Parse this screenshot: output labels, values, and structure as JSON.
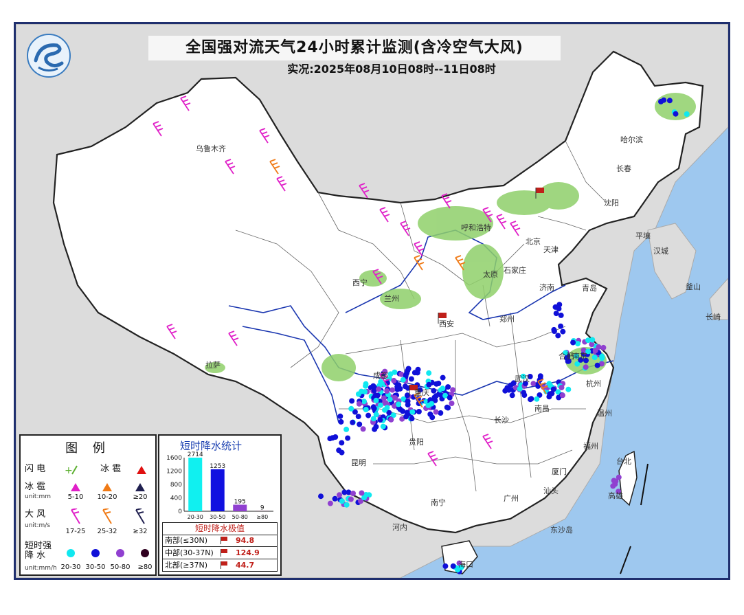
{
  "header": {
    "title": "全国强对流天气24小时累计监测(含冷空气大风)",
    "subtitle": "实况:2025年08月10日08时--11日08时"
  },
  "map_labels": {
    "urumqi": "乌鲁木齐",
    "lhasa": "拉萨",
    "xining": "西宁",
    "lanzhou": "兰州",
    "xian": "西安",
    "chengdu": "成都",
    "chongqing": "重庆",
    "guiyang": "贵阳",
    "kunming": "昆明",
    "nanning": "南宁",
    "guangzhou": "广州",
    "haikou": "海口",
    "changsha": "长沙",
    "nanchang": "南昌",
    "fuzhou": "福州",
    "hefei": "合肥",
    "nanjing": "南京",
    "wuhan": "武汉",
    "zhengzhou": "郑州",
    "jinan": "济南",
    "shijiazhuang": "石家庄",
    "taiyuan": "太原",
    "beijing": "北京",
    "tianjin": "天津",
    "hohhot": "呼和浩特",
    "shenyang": "沈阳",
    "changchun": "长春",
    "harbin": "哈尔滨",
    "qingdao": "青岛",
    "hangzhou": "杭州",
    "wenzhou": "温州",
    "xiamen": "厦门",
    "taipei": "台北",
    "kaohsiung": "高雄",
    "shantou": "汕头",
    "pyongyang": "平壤",
    "seoul": "汉城",
    "busan": "釜山",
    "nagasaki": "长崎",
    "hanoi": "河内",
    "dongsha": "东沙岛"
  },
  "legend": {
    "title": "图 例",
    "lightning_label": "闪 电",
    "hail_label": "冰 雹",
    "hail_size_label": "冰 雹",
    "hail_unit": "unit:mm",
    "hail_levels": [
      "5-10",
      "10-20",
      "≥20"
    ],
    "hail_colors": [
      "#e020c8",
      "#f07a16",
      "#202050"
    ],
    "wind_label": "大 风",
    "wind_unit": "unit:m/s",
    "wind_levels": [
      "17-25",
      "25-32",
      "≥32"
    ],
    "wind_colors": [
      "#e020c8",
      "#f07a16",
      "#202050"
    ],
    "rain_label_1": "短时强",
    "rain_label_2": "降  水",
    "rain_unit": "unit:mm/h",
    "rain_levels": [
      "20-30",
      "30-50",
      "50-80",
      "≥80"
    ],
    "rain_colors": [
      "#10e8f0",
      "#1010d8",
      "#9040d0",
      "#300020"
    ]
  },
  "stats": {
    "title": "短时降水统计",
    "ext_title": "短时降水极值",
    "extremes": [
      {
        "region": "南部(≤30N)",
        "value": "94.8"
      },
      {
        "region": "中部(30-37N)",
        "value": "124.9"
      },
      {
        "region": "北部(≥37N)",
        "value": "44.7"
      }
    ]
  },
  "chart_data": {
    "type": "bar",
    "title": "短时降水统计",
    "categories": [
      "20-30",
      "30-50",
      "50-80",
      "≥80"
    ],
    "values": [
      2714,
      1253,
      195,
      9
    ],
    "data_labels": [
      "2714",
      "1253",
      "195",
      "9"
    ],
    "colors": [
      "#10f0f0",
      "#1010e0",
      "#9040d0",
      "#300020"
    ],
    "yticks": [
      0,
      400,
      800,
      1200,
      1600
    ],
    "ylim": [
      0,
      1600
    ]
  }
}
